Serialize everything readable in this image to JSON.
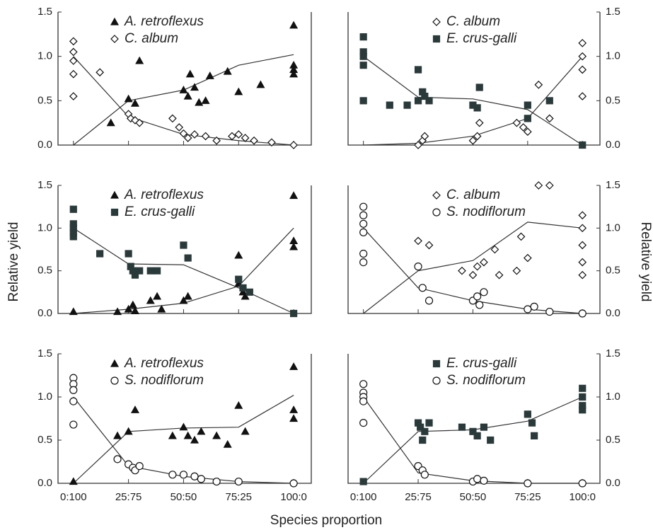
{
  "xlabel": "Species proportion",
  "ylabel": "Relative yield",
  "chart_data": [
    {
      "type": "scatter",
      "yaxis_side": "left",
      "show_xtick_labels": false,
      "xlim": [
        -7,
        108
      ],
      "ylim": [
        0,
        1.5
      ],
      "xticks": [
        {
          "value": 0,
          "label": "0:100"
        },
        {
          "value": 25,
          "label": "25:75"
        },
        {
          "value": 50,
          "label": "50:50"
        },
        {
          "value": 75,
          "label": "75:25"
        },
        {
          "value": 100,
          "label": "100:0"
        }
      ],
      "yticks": [
        {
          "value": 0,
          "label": "0.0"
        },
        {
          "value": 0.5,
          "label": "0.5"
        },
        {
          "value": 1,
          "label": "1.0"
        },
        {
          "value": 1.5,
          "label": "1.5"
        }
      ],
      "line_x": [
        0,
        25,
        50,
        75,
        100
      ],
      "series": [
        {
          "name": "A. retroflexus",
          "marker": "triangle-filled",
          "color": "#111111",
          "x": [
            17,
            25,
            28,
            30,
            50,
            52,
            53,
            55,
            57,
            60,
            62,
            70,
            75,
            85,
            100,
            100,
            100,
            100
          ],
          "values": [
            0.25,
            0.52,
            0.47,
            0.95,
            0.62,
            0.55,
            0.8,
            0.65,
            0.48,
            0.5,
            0.78,
            0.83,
            0.6,
            0.68,
            1.35,
            0.9,
            0.85,
            0.8
          ],
          "line": [
            0,
            0.5,
            0.62,
            0.9,
            1.02
          ]
        },
        {
          "name": "C. album",
          "marker": "diamond-open",
          "color": "#111111",
          "x": [
            0,
            0,
            0,
            0,
            0,
            12,
            25,
            26,
            28,
            30,
            45,
            48,
            50,
            52,
            55,
            60,
            65,
            72,
            75,
            78,
            82,
            90,
            100
          ],
          "values": [
            1.17,
            1.05,
            0.95,
            0.8,
            0.55,
            0.82,
            0.35,
            0.3,
            0.28,
            0.25,
            0.3,
            0.2,
            0.13,
            0.08,
            0.12,
            0.1,
            0.05,
            0.1,
            0.12,
            0.08,
            0.05,
            0.03,
            0
          ],
          "line": [
            1,
            0.32,
            0.12,
            0.05,
            0
          ]
        }
      ]
    },
    {
      "type": "scatter",
      "yaxis_side": "right",
      "show_xtick_labels": false,
      "xlim": [
        -7,
        108
      ],
      "ylim": [
        0,
        1.5
      ],
      "xticks": [
        {
          "value": 0,
          "label": "0:100"
        },
        {
          "value": 25,
          "label": "25:75"
        },
        {
          "value": 50,
          "label": "50:50"
        },
        {
          "value": 75,
          "label": "75:25"
        },
        {
          "value": 100,
          "label": "100:0"
        }
      ],
      "yticks": [
        {
          "value": 0,
          "label": "0.0"
        },
        {
          "value": 0.5,
          "label": "0.5"
        },
        {
          "value": 1,
          "label": "1.0"
        },
        {
          "value": 1.5,
          "label": "1.5"
        }
      ],
      "line_x": [
        0,
        25,
        50,
        75,
        100
      ],
      "series": [
        {
          "name": "C. album",
          "marker": "diamond-open",
          "color": "#111111",
          "x": [
            25,
            27,
            28,
            50,
            52,
            53,
            70,
            73,
            75,
            80,
            85,
            100,
            100,
            100,
            100
          ],
          "values": [
            0,
            0.05,
            0.1,
            0.05,
            0.1,
            0.25,
            0.25,
            0.2,
            0.15,
            0.68,
            0.3,
            1.15,
            1,
            0.85,
            0.55
          ],
          "line": [
            0,
            0.02,
            0.1,
            0.3,
            1
          ]
        },
        {
          "name": "E. crus-galli",
          "marker": "square-filled",
          "color": "#2a3a3a",
          "x": [
            0,
            0,
            0,
            0,
            0,
            12,
            20,
            25,
            25,
            27,
            28,
            30,
            50,
            52,
            53,
            75,
            75,
            85,
            100
          ],
          "values": [
            1.22,
            1.05,
            1,
            0.9,
            0.5,
            0.45,
            0.45,
            0.85,
            0.5,
            0.6,
            0.55,
            0.5,
            0.45,
            0.42,
            0.65,
            0.45,
            0.3,
            0.5,
            0
          ],
          "line": [
            1,
            0.54,
            0.52,
            0.4,
            0
          ]
        }
      ]
    },
    {
      "type": "scatter",
      "yaxis_side": "left",
      "show_xtick_labels": false,
      "xlim": [
        -7,
        108
      ],
      "ylim": [
        0,
        1.5
      ],
      "xticks": [
        {
          "value": 0,
          "label": "0:100"
        },
        {
          "value": 25,
          "label": "25:75"
        },
        {
          "value": 50,
          "label": "50:50"
        },
        {
          "value": 75,
          "label": "75:25"
        },
        {
          "value": 100,
          "label": "100:0"
        }
      ],
      "yticks": [
        {
          "value": 0,
          "label": "0.0"
        },
        {
          "value": 0.5,
          "label": "0.5"
        },
        {
          "value": 1,
          "label": "1.0"
        },
        {
          "value": 1.5,
          "label": "1.5"
        }
      ],
      "line_x": [
        0,
        25,
        50,
        75,
        100
      ],
      "series": [
        {
          "name": "A. retroflexus",
          "marker": "triangle-filled",
          "color": "#111111",
          "x": [
            0,
            20,
            25,
            27,
            28,
            35,
            38,
            40,
            50,
            52,
            75,
            75,
            77,
            78,
            100,
            100,
            100
          ],
          "values": [
            0.02,
            0.02,
            0.05,
            0.1,
            0.03,
            0.15,
            0.2,
            0.05,
            0.15,
            0.2,
            0.35,
            0.68,
            0.25,
            0.2,
            1.38,
            0.85,
            0.78
          ],
          "line": [
            0,
            0.05,
            0.12,
            0.32,
            1
          ]
        },
        {
          "name": "E. crus-galli",
          "marker": "square-filled",
          "color": "#2a3a3a",
          "x": [
            0,
            0,
            0,
            0,
            0,
            12,
            25,
            26,
            27,
            28,
            30,
            35,
            38,
            50,
            52,
            75,
            77,
            80,
            100
          ],
          "values": [
            1.22,
            1.05,
            1,
            0.95,
            0.9,
            0.7,
            0.7,
            0.55,
            0.5,
            0.45,
            0.5,
            0.5,
            0.5,
            0.8,
            0.65,
            0.4,
            0.3,
            0.25,
            0
          ],
          "line": [
            1,
            0.58,
            0.57,
            0.3,
            0
          ]
        }
      ]
    },
    {
      "type": "scatter",
      "yaxis_side": "right",
      "show_xtick_labels": false,
      "xlim": [
        -7,
        108
      ],
      "ylim": [
        0,
        1.5
      ],
      "xticks": [
        {
          "value": 0,
          "label": "0:100"
        },
        {
          "value": 25,
          "label": "25:75"
        },
        {
          "value": 50,
          "label": "50:50"
        },
        {
          "value": 75,
          "label": "75:25"
        },
        {
          "value": 100,
          "label": "100:0"
        }
      ],
      "yticks": [
        {
          "value": 0,
          "label": "0.0"
        },
        {
          "value": 0.5,
          "label": "0.5"
        },
        {
          "value": 1,
          "label": "1.0"
        },
        {
          "value": 1.5,
          "label": "1.5"
        }
      ],
      "line_x": [
        0,
        25,
        50,
        75,
        100
      ],
      "series": [
        {
          "name": "C. album",
          "marker": "diamond-open",
          "color": "#111111",
          "x": [
            25,
            30,
            45,
            50,
            52,
            55,
            60,
            62,
            70,
            75,
            72,
            80,
            85,
            100,
            100,
            100,
            100,
            100
          ],
          "values": [
            0.85,
            0.8,
            0.5,
            0.45,
            0.55,
            0.6,
            0.75,
            0.45,
            0.5,
            0.65,
            0.9,
            1.5,
            1.5,
            1.15,
            1,
            0.8,
            0.6,
            0.45
          ],
          "line": [
            0,
            0.5,
            0.62,
            1.07,
            1
          ]
        },
        {
          "name": "S. nodiflorum",
          "marker": "circle-open",
          "color": "#111111",
          "x": [
            0,
            0,
            0,
            0,
            0,
            0,
            25,
            27,
            30,
            50,
            52,
            53,
            55,
            75,
            78,
            85,
            100
          ],
          "values": [
            1.25,
            1.15,
            1.05,
            0.95,
            0.7,
            0.6,
            0.55,
            0.3,
            0.15,
            0.15,
            0.2,
            0.1,
            0.25,
            0.05,
            0.08,
            0.02,
            0
          ],
          "line": [
            1,
            0.3,
            0.15,
            0.05,
            0
          ]
        }
      ]
    },
    {
      "type": "scatter",
      "yaxis_side": "left",
      "show_xtick_labels": true,
      "xlim": [
        -7,
        108
      ],
      "ylim": [
        0,
        1.5
      ],
      "xticks": [
        {
          "value": 0,
          "label": "0:100"
        },
        {
          "value": 25,
          "label": "25:75"
        },
        {
          "value": 50,
          "label": "50:50"
        },
        {
          "value": 75,
          "label": "75:25"
        },
        {
          "value": 100,
          "label": "100:0"
        }
      ],
      "yticks": [
        {
          "value": 0,
          "label": "0.0"
        },
        {
          "value": 0.5,
          "label": "0.5"
        },
        {
          "value": 1,
          "label": "1.0"
        },
        {
          "value": 1.5,
          "label": "1.5"
        }
      ],
      "line_x": [
        0,
        25,
        50,
        75,
        100
      ],
      "series": [
        {
          "name": "A. retroflexus",
          "marker": "triangle-filled",
          "color": "#111111",
          "x": [
            0,
            20,
            25,
            28,
            45,
            50,
            52,
            55,
            58,
            65,
            70,
            75,
            78,
            100,
            100,
            100
          ],
          "values": [
            0.02,
            0.55,
            0.6,
            0.85,
            0.55,
            0.65,
            0.55,
            0.5,
            0.6,
            0.55,
            0.45,
            0.9,
            0.6,
            1.35,
            0.85,
            0.75
          ],
          "line": [
            0,
            0.6,
            0.64,
            0.65,
            1.02
          ]
        },
        {
          "name": "S. nodiflorum",
          "marker": "circle-open",
          "color": "#111111",
          "x": [
            0,
            0,
            0,
            0,
            0,
            20,
            25,
            27,
            28,
            30,
            45,
            50,
            55,
            58,
            65,
            75,
            100
          ],
          "values": [
            1.22,
            1.15,
            1.08,
            0.95,
            0.68,
            0.28,
            0.22,
            0.18,
            0.15,
            0.2,
            0.1,
            0.1,
            0.08,
            0.05,
            0.02,
            0.02,
            0
          ],
          "line": [
            1,
            0.2,
            0.08,
            0.02,
            0
          ]
        }
      ]
    },
    {
      "type": "scatter",
      "yaxis_side": "right",
      "show_xtick_labels": true,
      "xlim": [
        -7,
        108
      ],
      "ylim": [
        0,
        1.5
      ],
      "xticks": [
        {
          "value": 0,
          "label": "0:100"
        },
        {
          "value": 25,
          "label": "25:75"
        },
        {
          "value": 50,
          "label": "50:50"
        },
        {
          "value": 75,
          "label": "75:25"
        },
        {
          "value": 100,
          "label": "100:0"
        }
      ],
      "yticks": [
        {
          "value": 0,
          "label": "0.0"
        },
        {
          "value": 0.5,
          "label": "0.5"
        },
        {
          "value": 1,
          "label": "1.0"
        },
        {
          "value": 1.5,
          "label": "1.5"
        }
      ],
      "line_x": [
        0,
        25,
        50,
        75,
        100
      ],
      "series": [
        {
          "name": "E. crus-galli",
          "marker": "square-filled",
          "color": "#2a3a3a",
          "x": [
            0,
            25,
            26,
            27,
            28,
            30,
            45,
            50,
            52,
            55,
            58,
            75,
            77,
            78,
            100,
            100,
            100,
            100
          ],
          "values": [
            0.02,
            0.7,
            0.65,
            0.5,
            0.6,
            0.7,
            0.65,
            0.6,
            0.55,
            0.65,
            0.5,
            0.8,
            0.7,
            0.55,
            1.1,
            1,
            0.9,
            0.85
          ],
          "line": [
            0,
            0.6,
            0.62,
            0.72,
            1
          ]
        },
        {
          "name": "S. nodiflorum",
          "marker": "circle-open",
          "color": "#111111",
          "x": [
            0,
            0,
            0,
            0,
            0,
            25,
            27,
            28,
            50,
            52,
            55,
            75,
            100
          ],
          "values": [
            1.15,
            1.05,
            1,
            0.95,
            0.7,
            0.2,
            0.15,
            0.1,
            0.02,
            0.05,
            0.03,
            0,
            0
          ],
          "line": [
            1,
            0.12,
            0.03,
            0,
            0
          ]
        }
      ]
    }
  ]
}
